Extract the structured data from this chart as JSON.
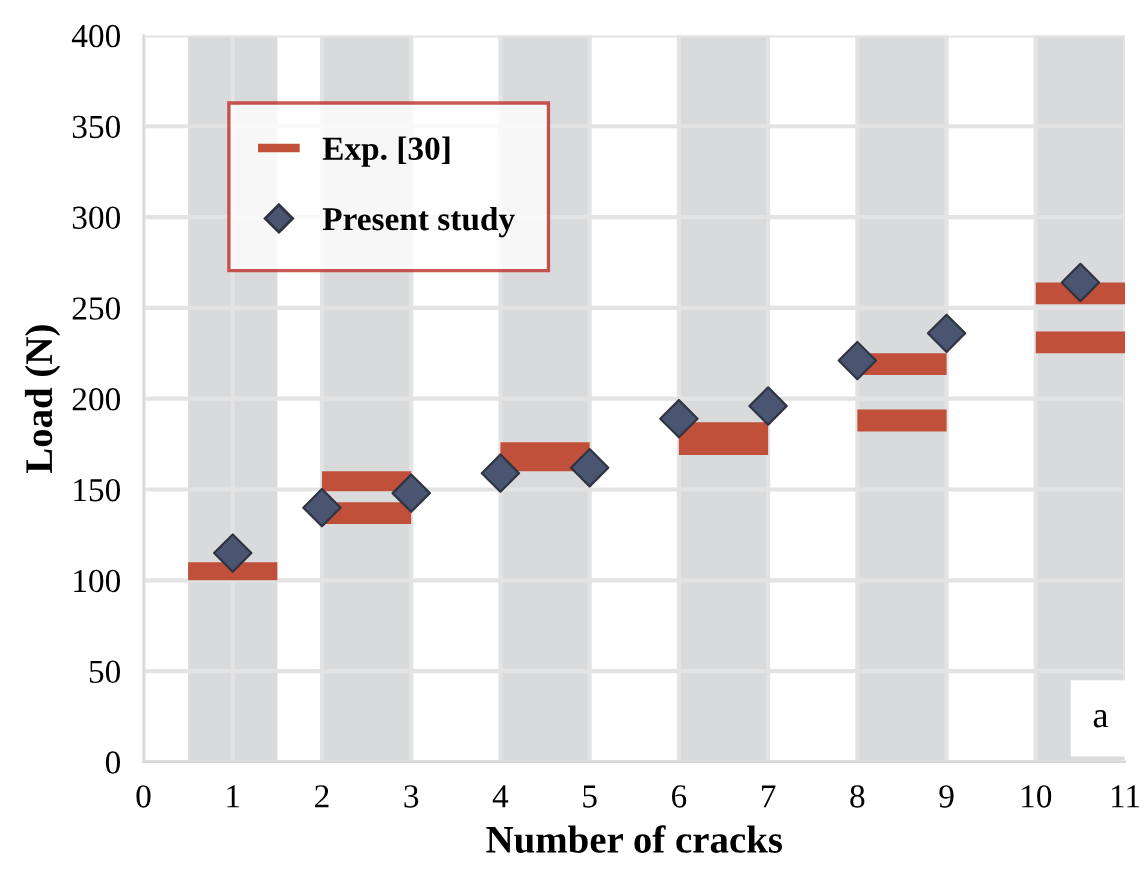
{
  "chart_data": {
    "type": "bar",
    "xlabel": "Number of cracks",
    "ylabel": "Load (N)",
    "xlim": [
      0,
      11
    ],
    "xticks": [
      0,
      1,
      2,
      3,
      4,
      5,
      6,
      7,
      8,
      9,
      10,
      11
    ],
    "ylim": [
      0,
      400
    ],
    "yticks": [
      0,
      50,
      100,
      150,
      200,
      250,
      300,
      350,
      400
    ],
    "grid": true,
    "legend": "top left",
    "bands": [
      {
        "axis": "x",
        "from": 0.5,
        "to": 1.5,
        "color": "#d9dadc"
      },
      {
        "axis": "x",
        "from": 2,
        "to": 3,
        "color": "#d9dadc"
      },
      {
        "axis": "x",
        "from": 4,
        "to": 5,
        "color": "#d9dadc"
      },
      {
        "axis": "x",
        "from": 6,
        "to": 7,
        "color": "#d9dadc"
      },
      {
        "axis": "x",
        "from": 8,
        "to": 9,
        "color": "#d9dadc"
      },
      {
        "axis": "x",
        "from": 10,
        "to": 11,
        "color": "#d9dadc"
      }
    ],
    "series": [
      {
        "name": "Exp. [30]",
        "color": "#c0503a",
        "x": [
          1,
          2.5,
          4.5,
          6.5,
          8.5,
          10.5
        ],
        "base": [
          100,
          149,
          160,
          169,
          213,
          252
        ],
        "values": [
          10,
          11,
          16,
          18,
          12,
          12
        ]
      },
      {
        "color": "#c0503a",
        "x": [
          2.5,
          8.5,
          10.5
        ],
        "base": [
          131,
          182,
          225
        ],
        "values": [
          12,
          12,
          12
        ]
      },
      {
        "name": "Present study",
        "type": "scatter",
        "marker": "diamond",
        "color": "#4a5572",
        "x": [
          1,
          2,
          3,
          4,
          5,
          6,
          7,
          8,
          9,
          10.5
        ],
        "values": [
          115,
          140,
          148,
          159,
          162,
          189,
          196,
          221,
          236,
          264
        ]
      }
    ],
    "annotations": [
      "a"
    ]
  }
}
